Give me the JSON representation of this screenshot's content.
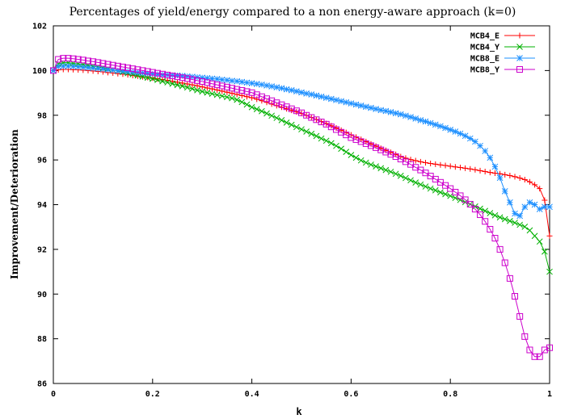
{
  "chart_data": {
    "type": "line",
    "title": "Percentages of yield/energy compared to a non energy-aware approach (k=0)",
    "xlabel": "k",
    "ylabel": "Improvement/Deterioration",
    "xlim": [
      0,
      1
    ],
    "ylim": [
      86,
      102
    ],
    "xticks": [
      0,
      0.2,
      0.4,
      0.6,
      0.8,
      1
    ],
    "xtick_labels": [
      "0",
      "0.2",
      "0.4",
      "0.6",
      "0.8",
      "1"
    ],
    "yticks": [
      86,
      88,
      90,
      92,
      94,
      96,
      98,
      100,
      102
    ],
    "ytick_labels": [
      "86",
      "88",
      "90",
      "92",
      "94",
      "96",
      "98",
      "100",
      "102"
    ],
    "grid": false,
    "legend_position": "top-right",
    "series": [
      {
        "name": "MCB4_E",
        "color": "#ff0000",
        "marker": "plus",
        "x": [
          0,
          0.01,
          0.02,
          0.03,
          0.04,
          0.05,
          0.06,
          0.07,
          0.08,
          0.09,
          0.1,
          0.11,
          0.12,
          0.13,
          0.14,
          0.15,
          0.16,
          0.17,
          0.18,
          0.19,
          0.2,
          0.21,
          0.22,
          0.23,
          0.24,
          0.25,
          0.26,
          0.27,
          0.28,
          0.29,
          0.3,
          0.31,
          0.32,
          0.33,
          0.34,
          0.35,
          0.36,
          0.37,
          0.38,
          0.39,
          0.4,
          0.41,
          0.42,
          0.43,
          0.44,
          0.45,
          0.46,
          0.47,
          0.48,
          0.49,
          0.5,
          0.51,
          0.52,
          0.53,
          0.54,
          0.55,
          0.56,
          0.57,
          0.58,
          0.59,
          0.6,
          0.61,
          0.62,
          0.63,
          0.64,
          0.65,
          0.66,
          0.67,
          0.68,
          0.69,
          0.7,
          0.71,
          0.72,
          0.73,
          0.74,
          0.75,
          0.76,
          0.77,
          0.78,
          0.79,
          0.8,
          0.81,
          0.82,
          0.83,
          0.84,
          0.85,
          0.86,
          0.87,
          0.88,
          0.89,
          0.9,
          0.91,
          0.92,
          0.93,
          0.94,
          0.95,
          0.96,
          0.97,
          0.98,
          0.99,
          1.0
        ],
        "y": [
          100.0,
          100.03,
          100.05,
          100.05,
          100.04,
          100.03,
          100.02,
          100.0,
          99.98,
          99.96,
          99.94,
          99.91,
          99.89,
          99.86,
          99.84,
          99.81,
          99.78,
          99.75,
          99.72,
          99.69,
          99.66,
          99.63,
          99.6,
          99.56,
          99.52,
          99.48,
          99.44,
          99.4,
          99.36,
          99.32,
          99.27,
          99.22,
          99.18,
          99.13,
          99.08,
          99.03,
          98.98,
          98.93,
          98.88,
          98.83,
          98.78,
          98.72,
          98.65,
          98.58,
          98.5,
          98.43,
          98.36,
          98.29,
          98.22,
          98.15,
          98.08,
          97.99,
          97.9,
          97.81,
          97.72,
          97.63,
          97.53,
          97.43,
          97.33,
          97.23,
          97.12,
          97.02,
          96.92,
          96.82,
          96.72,
          96.62,
          96.52,
          96.43,
          96.34,
          96.25,
          96.15,
          96.08,
          96.02,
          95.97,
          95.92,
          95.88,
          95.84,
          95.81,
          95.78,
          95.75,
          95.72,
          95.69,
          95.66,
          95.63,
          95.6,
          95.56,
          95.52,
          95.48,
          95.44,
          95.41,
          95.38,
          95.34,
          95.3,
          95.25,
          95.19,
          95.12,
          95.02,
          94.89,
          94.72,
          94.2,
          92.6
        ]
      },
      {
        "name": "MCB4_Y",
        "color": "#00b000",
        "marker": "cross",
        "x": [
          0,
          0.01,
          0.02,
          0.03,
          0.04,
          0.05,
          0.06,
          0.07,
          0.08,
          0.09,
          0.1,
          0.11,
          0.12,
          0.13,
          0.14,
          0.15,
          0.16,
          0.17,
          0.18,
          0.19,
          0.2,
          0.21,
          0.22,
          0.23,
          0.24,
          0.25,
          0.26,
          0.27,
          0.28,
          0.29,
          0.3,
          0.31,
          0.32,
          0.33,
          0.34,
          0.35,
          0.36,
          0.37,
          0.38,
          0.39,
          0.4,
          0.41,
          0.42,
          0.43,
          0.44,
          0.45,
          0.46,
          0.47,
          0.48,
          0.49,
          0.5,
          0.51,
          0.52,
          0.53,
          0.54,
          0.55,
          0.56,
          0.57,
          0.58,
          0.59,
          0.6,
          0.61,
          0.62,
          0.63,
          0.64,
          0.65,
          0.66,
          0.67,
          0.68,
          0.69,
          0.7,
          0.71,
          0.72,
          0.73,
          0.74,
          0.75,
          0.76,
          0.77,
          0.78,
          0.79,
          0.8,
          0.81,
          0.82,
          0.83,
          0.84,
          0.85,
          0.86,
          0.87,
          0.88,
          0.89,
          0.9,
          0.91,
          0.92,
          0.93,
          0.94,
          0.95,
          0.96,
          0.97,
          0.98,
          0.99,
          1.0
        ],
        "y": [
          100.0,
          100.3,
          100.35,
          100.35,
          100.32,
          100.3,
          100.27,
          100.24,
          100.2,
          100.16,
          100.12,
          100.07,
          100.03,
          99.98,
          99.93,
          99.88,
          99.83,
          99.78,
          99.73,
          99.68,
          99.63,
          99.58,
          99.52,
          99.47,
          99.41,
          99.35,
          99.3,
          99.24,
          99.18,
          99.12,
          99.06,
          99.01,
          98.96,
          98.91,
          98.86,
          98.81,
          98.76,
          98.69,
          98.59,
          98.48,
          98.36,
          98.27,
          98.18,
          98.08,
          97.98,
          97.88,
          97.78,
          97.67,
          97.57,
          97.47,
          97.37,
          97.27,
          97.17,
          97.07,
          96.96,
          96.86,
          96.75,
          96.63,
          96.5,
          96.36,
          96.22,
          96.1,
          95.98,
          95.88,
          95.79,
          95.71,
          95.63,
          95.55,
          95.47,
          95.38,
          95.29,
          95.19,
          95.09,
          94.99,
          94.9,
          94.81,
          94.72,
          94.64,
          94.55,
          94.47,
          94.39,
          94.3,
          94.21,
          94.11,
          94.02,
          93.92,
          93.82,
          93.72,
          93.62,
          93.52,
          93.43,
          93.35,
          93.27,
          93.19,
          93.1,
          93.01,
          92.85,
          92.6,
          92.35,
          91.9,
          91.0
        ]
      },
      {
        "name": "MCB8_E",
        "color": "#1e90ff",
        "marker": "star",
        "x": [
          0,
          0.01,
          0.02,
          0.03,
          0.04,
          0.05,
          0.06,
          0.07,
          0.08,
          0.09,
          0.1,
          0.11,
          0.12,
          0.13,
          0.14,
          0.15,
          0.16,
          0.17,
          0.18,
          0.19,
          0.2,
          0.21,
          0.22,
          0.23,
          0.24,
          0.25,
          0.26,
          0.27,
          0.28,
          0.29,
          0.3,
          0.31,
          0.32,
          0.33,
          0.34,
          0.35,
          0.36,
          0.37,
          0.38,
          0.39,
          0.4,
          0.41,
          0.42,
          0.43,
          0.44,
          0.45,
          0.46,
          0.47,
          0.48,
          0.49,
          0.5,
          0.51,
          0.52,
          0.53,
          0.54,
          0.55,
          0.56,
          0.57,
          0.58,
          0.59,
          0.6,
          0.61,
          0.62,
          0.63,
          0.64,
          0.65,
          0.66,
          0.67,
          0.68,
          0.69,
          0.7,
          0.71,
          0.72,
          0.73,
          0.74,
          0.75,
          0.76,
          0.77,
          0.78,
          0.79,
          0.8,
          0.81,
          0.82,
          0.83,
          0.84,
          0.85,
          0.86,
          0.87,
          0.88,
          0.89,
          0.9,
          0.91,
          0.92,
          0.93,
          0.94,
          0.95,
          0.96,
          0.97,
          0.98,
          0.99,
          1.0
        ],
        "y": [
          100.0,
          100.18,
          100.2,
          100.2,
          100.19,
          100.17,
          100.15,
          100.13,
          100.11,
          100.09,
          100.07,
          100.04,
          100.02,
          99.99,
          99.97,
          99.95,
          99.93,
          99.91,
          99.89,
          99.87,
          99.85,
          99.83,
          99.81,
          99.8,
          99.79,
          99.78,
          99.76,
          99.74,
          99.72,
          99.7,
          99.68,
          99.66,
          99.64,
          99.62,
          99.59,
          99.57,
          99.54,
          99.52,
          99.49,
          99.46,
          99.43,
          99.4,
          99.37,
          99.33,
          99.29,
          99.25,
          99.21,
          99.16,
          99.12,
          99.07,
          99.02,
          98.97,
          98.93,
          98.88,
          98.83,
          98.78,
          98.73,
          98.68,
          98.63,
          98.58,
          98.53,
          98.48,
          98.43,
          98.38,
          98.33,
          98.28,
          98.23,
          98.19,
          98.14,
          98.09,
          98.04,
          97.98,
          97.92,
          97.85,
          97.78,
          97.72,
          97.65,
          97.58,
          97.51,
          97.43,
          97.35,
          97.27,
          97.18,
          97.08,
          96.96,
          96.82,
          96.63,
          96.4,
          96.1,
          95.7,
          95.2,
          94.6,
          94.1,
          93.6,
          93.5,
          93.9,
          94.1,
          94.0,
          93.8,
          93.9,
          93.9
        ]
      },
      {
        "name": "MCB8_Y",
        "color": "#cc00cc",
        "marker": "square",
        "x": [
          0,
          0.01,
          0.02,
          0.03,
          0.04,
          0.05,
          0.06,
          0.07,
          0.08,
          0.09,
          0.1,
          0.11,
          0.12,
          0.13,
          0.14,
          0.15,
          0.16,
          0.17,
          0.18,
          0.19,
          0.2,
          0.21,
          0.22,
          0.23,
          0.24,
          0.25,
          0.26,
          0.27,
          0.28,
          0.29,
          0.3,
          0.31,
          0.32,
          0.33,
          0.34,
          0.35,
          0.36,
          0.37,
          0.38,
          0.39,
          0.4,
          0.41,
          0.42,
          0.43,
          0.44,
          0.45,
          0.46,
          0.47,
          0.48,
          0.49,
          0.5,
          0.51,
          0.52,
          0.53,
          0.54,
          0.55,
          0.56,
          0.57,
          0.58,
          0.59,
          0.6,
          0.61,
          0.62,
          0.63,
          0.64,
          0.65,
          0.66,
          0.67,
          0.68,
          0.69,
          0.7,
          0.71,
          0.72,
          0.73,
          0.74,
          0.75,
          0.76,
          0.77,
          0.78,
          0.79,
          0.8,
          0.81,
          0.82,
          0.83,
          0.84,
          0.85,
          0.86,
          0.87,
          0.88,
          0.89,
          0.9,
          0.91,
          0.92,
          0.93,
          0.94,
          0.95,
          0.96,
          0.97,
          0.98,
          0.99,
          1.0
        ],
        "y": [
          100.0,
          100.5,
          100.55,
          100.55,
          100.53,
          100.5,
          100.47,
          100.43,
          100.4,
          100.36,
          100.32,
          100.28,
          100.24,
          100.2,
          100.16,
          100.12,
          100.08,
          100.04,
          100.0,
          99.96,
          99.92,
          99.88,
          99.84,
          99.8,
          99.76,
          99.72,
          99.68,
          99.64,
          99.6,
          99.55,
          99.51,
          99.46,
          99.41,
          99.36,
          99.31,
          99.26,
          99.21,
          99.16,
          99.11,
          99.06,
          99.01,
          98.92,
          98.83,
          98.74,
          98.65,
          98.56,
          98.47,
          98.38,
          98.29,
          98.2,
          98.11,
          98.0,
          97.9,
          97.8,
          97.7,
          97.6,
          97.48,
          97.36,
          97.24,
          97.12,
          97.0,
          96.91,
          96.82,
          96.73,
          96.64,
          96.55,
          96.45,
          96.35,
          96.25,
          96.15,
          96.04,
          95.92,
          95.8,
          95.67,
          95.55,
          95.42,
          95.28,
          95.14,
          95.0,
          94.86,
          94.72,
          94.56,
          94.4,
          94.22,
          94.02,
          93.8,
          93.55,
          93.25,
          92.9,
          92.5,
          92.0,
          91.4,
          90.7,
          89.9,
          89.0,
          88.1,
          87.5,
          87.2,
          87.2,
          87.5,
          87.6
        ]
      }
    ]
  }
}
